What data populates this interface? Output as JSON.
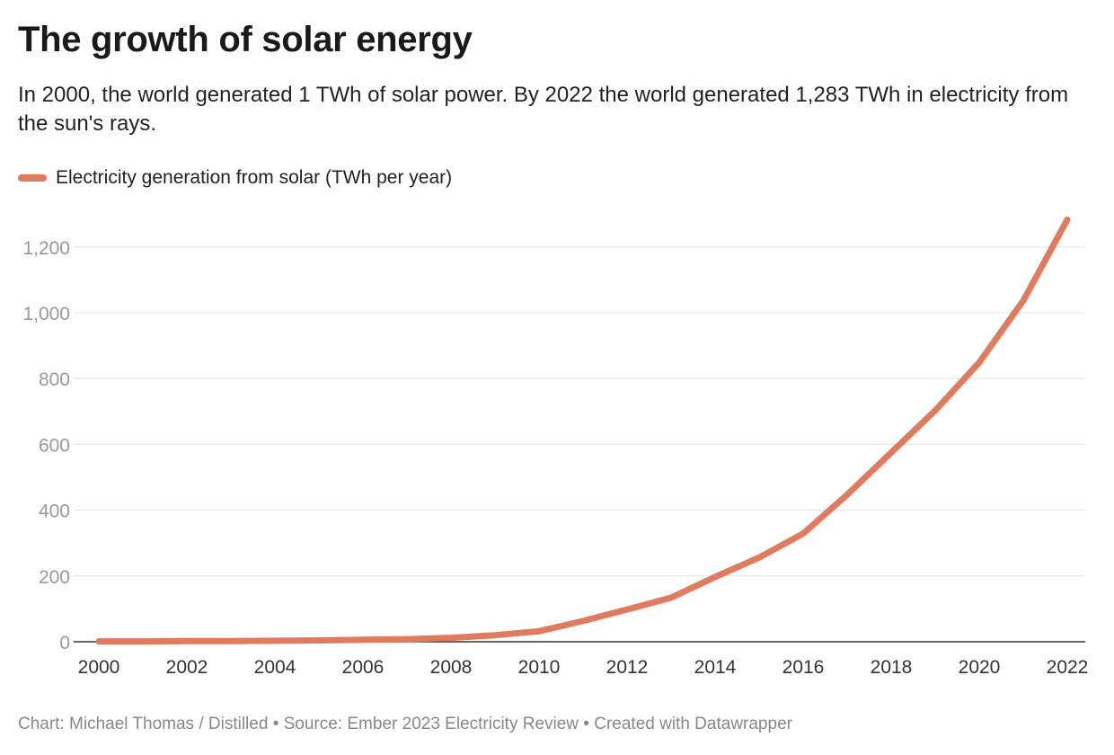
{
  "chart_data": {
    "type": "line",
    "title": "The growth of solar energy",
    "subtitle": "In 2000, the world generated 1 TWh of solar power. By 2022 the world generated 1,283 TWh in electricity from the sun's rays.",
    "x": [
      2000,
      2001,
      2002,
      2003,
      2004,
      2005,
      2006,
      2007,
      2008,
      2009,
      2010,
      2011,
      2012,
      2013,
      2014,
      2015,
      2016,
      2017,
      2018,
      2019,
      2020,
      2021,
      2022
    ],
    "series": [
      {
        "name": "Electricity generation from solar (TWh per year)",
        "color": "#e07b5f",
        "values": [
          1,
          1,
          2,
          2,
          3,
          4,
          6,
          8,
          12,
          20,
          32,
          63,
          98,
          134,
          197,
          256,
          329,
          447,
          575,
          703,
          849,
          1037,
          1283
        ]
      }
    ],
    "xlim": [
      2000,
      2022
    ],
    "ylim": [
      0,
      1283
    ],
    "yticks": [
      0,
      200,
      400,
      600,
      800,
      1000,
      1200
    ],
    "ytick_labels": [
      "0",
      "200",
      "400",
      "600",
      "800",
      "1,000",
      "1,200"
    ],
    "xticks": [
      2000,
      2002,
      2004,
      2006,
      2008,
      2010,
      2012,
      2014,
      2016,
      2018,
      2020,
      2022
    ],
    "xtick_labels": [
      "2000",
      "2002",
      "2004",
      "2006",
      "2008",
      "2010",
      "2012",
      "2014",
      "2016",
      "2018",
      "2020",
      "2022"
    ],
    "grid": "horizontal",
    "legend_position": "top-left"
  },
  "footer": "Chart: Michael Thomas / Distilled • Source: Ember 2023 Electricity Review • Created with Datawrapper"
}
